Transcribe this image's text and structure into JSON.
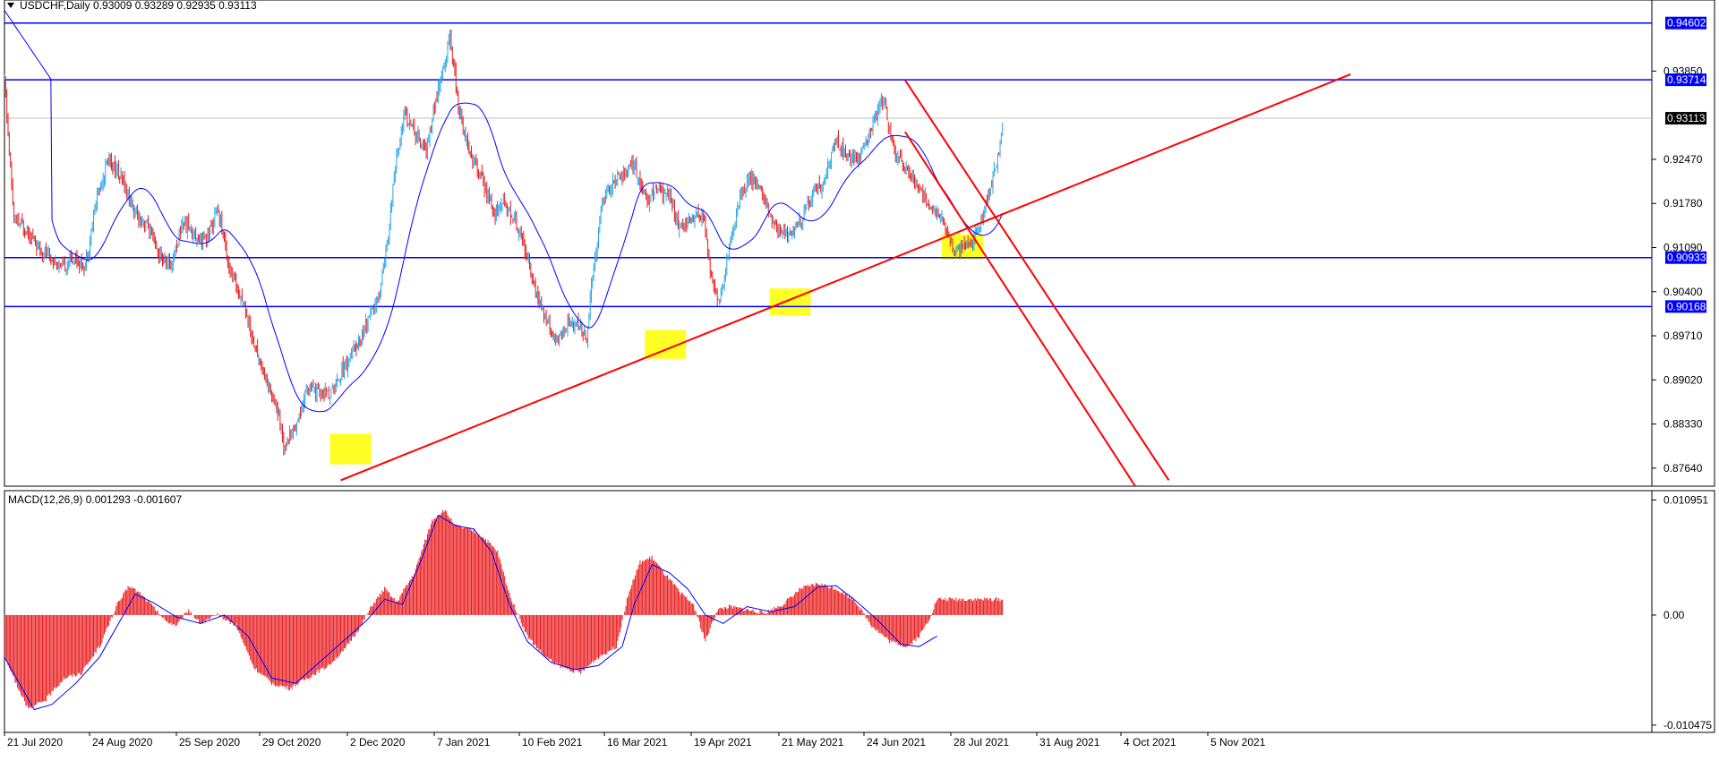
{
  "window": {
    "symbol_line": "USDCHF,Daily  0.93009 0.93289 0.92935 0.93113",
    "menu_icon": "triangle-down-icon"
  },
  "chart_data": [
    {
      "type": "candlestick",
      "title": "USDCHF,Daily",
      "ohlc_header": {
        "open": 0.93009,
        "high": 0.93289,
        "low": 0.92935,
        "close": 0.93113
      },
      "y_ticks": [
        "0.93850",
        "0.92470",
        "0.91780",
        "0.91090",
        "0.90400",
        "0.89710",
        "0.89020",
        "0.88330",
        "0.87640"
      ],
      "ylim": [
        0.874,
        0.9485
      ],
      "x_ticks": [
        "21 Jul 2020",
        "24 Aug 2020",
        "25 Sep 2020",
        "29 Oct 2020",
        "2 Dec 2020",
        "7 Jan 2021",
        "10 Feb 2021",
        "16 Mar 2021",
        "19 Apr 2021",
        "21 May 2021",
        "24 Jun 2021",
        "28 Jul 2021",
        "31 Aug 2021",
        "4 Oct 2021",
        "5 Nov 2021"
      ],
      "bullish_color": "#29a3e8",
      "bearish_color": "#e8191b",
      "price_path": [
        [
          0,
          0.937
        ],
        [
          8,
          0.915
        ],
        [
          18,
          0.914
        ],
        [
          28,
          0.911
        ],
        [
          38,
          0.9095
        ],
        [
          48,
          0.9075
        ],
        [
          58,
          0.9095
        ],
        [
          68,
          0.908
        ],
        [
          78,
          0.919
        ],
        [
          88,
          0.925
        ],
        [
          100,
          0.921
        ],
        [
          110,
          0.916
        ],
        [
          120,
          0.9145
        ],
        [
          130,
          0.9095
        ],
        [
          140,
          0.908
        ],
        [
          150,
          0.915
        ],
        [
          160,
          0.913
        ],
        [
          170,
          0.912
        ],
        [
          180,
          0.917
        ],
        [
          190,
          0.907
        ],
        [
          200,
          0.903
        ],
        [
          210,
          0.896
        ],
        [
          220,
          0.89
        ],
        [
          228,
          0.887
        ],
        [
          235,
          0.88
        ],
        [
          245,
          0.883
        ],
        [
          255,
          0.889
        ],
        [
          265,
          0.888
        ],
        [
          275,
          0.888
        ],
        [
          285,
          0.892
        ],
        [
          295,
          0.895
        ],
        [
          305,
          0.899
        ],
        [
          315,
          0.903
        ],
        [
          323,
          0.913
        ],
        [
          330,
          0.925
        ],
        [
          337,
          0.932
        ],
        [
          345,
          0.929
        ],
        [
          355,
          0.926
        ],
        [
          362,
          0.933
        ],
        [
          370,
          0.939
        ],
        [
          375,
          0.944
        ],
        [
          382,
          0.933
        ],
        [
          390,
          0.927
        ],
        [
          398,
          0.923
        ],
        [
          405,
          0.92
        ],
        [
          412,
          0.916
        ],
        [
          420,
          0.918
        ],
        [
          430,
          0.915
        ],
        [
          440,
          0.91
        ],
        [
          448,
          0.903
        ],
        [
          458,
          0.899
        ],
        [
          466,
          0.896
        ],
        [
          474,
          0.899
        ],
        [
          482,
          0.8985
        ],
        [
          490,
          0.897
        ],
        [
          496,
          0.908
        ],
        [
          503,
          0.918
        ],
        [
          512,
          0.921
        ],
        [
          520,
          0.922
        ],
        [
          530,
          0.924
        ],
        [
          540,
          0.918
        ],
        [
          550,
          0.92
        ],
        [
          560,
          0.919
        ],
        [
          568,
          0.914
        ],
        [
          578,
          0.915
        ],
        [
          588,
          0.916
        ],
        [
          595,
          0.906
        ],
        [
          602,
          0.902
        ],
        [
          610,
          0.911
        ],
        [
          618,
          0.918
        ],
        [
          628,
          0.922
        ],
        [
          638,
          0.919
        ],
        [
          648,
          0.914
        ],
        [
          660,
          0.913
        ],
        [
          670,
          0.915
        ],
        [
          680,
          0.919
        ],
        [
          690,
          0.921
        ],
        [
          700,
          0.928
        ],
        [
          710,
          0.925
        ],
        [
          720,
          0.925
        ],
        [
          730,
          0.93
        ],
        [
          740,
          0.934
        ],
        [
          750,
          0.925
        ],
        [
          760,
          0.923
        ],
        [
          770,
          0.92
        ],
        [
          780,
          0.917
        ],
        [
          790,
          0.915
        ],
        [
          800,
          0.91
        ],
        [
          810,
          0.911
        ],
        [
          820,
          0.914
        ],
        [
          828,
          0.919
        ],
        [
          835,
          0.924
        ],
        [
          840,
          0.93
        ]
      ],
      "reference_points": [
        {
          "value": 0.94602,
          "color": "#0000ff",
          "tag": "0.94602"
        },
        {
          "value": 0.93714,
          "color": "#0000ff",
          "tag": "0.93714"
        },
        {
          "value": 0.93113,
          "color": "#000000",
          "tag": "0.93113"
        },
        {
          "value": 0.90933,
          "color": "#0000ff",
          "tag": "0.90933"
        },
        {
          "value": 0.90168,
          "color": "#0000ff",
          "tag": "0.90168"
        }
      ]
    },
    {
      "type": "bar",
      "title": "MACD(12,26,9) 0.001293 -0.001607",
      "indicator": "MACD(12,26,9)",
      "main_value": 0.001293,
      "signal_value": -0.001607,
      "y_ticks": [
        "0.010951",
        "0.00",
        "-0.010475"
      ],
      "ylim": [
        -0.011,
        0.0115
      ],
      "histogram_color": "#e8191b",
      "signal_color": "#0000ff",
      "histogram_path": [
        [
          0,
          -0.004
        ],
        [
          20,
          -0.009
        ],
        [
          35,
          -0.008
        ],
        [
          50,
          -0.006
        ],
        [
          65,
          -0.0055
        ],
        [
          80,
          -0.003
        ],
        [
          95,
          0.001
        ],
        [
          105,
          0.0028
        ],
        [
          115,
          0.002
        ],
        [
          125,
          0.0008
        ],
        [
          135,
          -0.0005
        ],
        [
          145,
          -0.001
        ],
        [
          155,
          0.0005
        ],
        [
          165,
          -0.0008
        ],
        [
          180,
          0.0
        ],
        [
          195,
          -0.001
        ],
        [
          210,
          -0.005
        ],
        [
          225,
          -0.0065
        ],
        [
          240,
          -0.007
        ],
        [
          255,
          -0.006
        ],
        [
          270,
          -0.005
        ],
        [
          285,
          -0.0035
        ],
        [
          300,
          -0.001
        ],
        [
          310,
          0.001
        ],
        [
          320,
          0.0025
        ],
        [
          330,
          0.0012
        ],
        [
          345,
          0.004
        ],
        [
          360,
          0.009
        ],
        [
          370,
          0.01
        ],
        [
          380,
          0.0085
        ],
        [
          395,
          0.008
        ],
        [
          405,
          0.0072
        ],
        [
          415,
          0.006
        ],
        [
          425,
          0.002
        ],
        [
          440,
          -0.002
        ],
        [
          455,
          -0.004
        ],
        [
          470,
          -0.005
        ],
        [
          485,
          -0.0055
        ],
        [
          500,
          -0.004
        ],
        [
          515,
          -0.003
        ],
        [
          525,
          0.002
        ],
        [
          535,
          0.005
        ],
        [
          545,
          0.0055
        ],
        [
          555,
          0.004
        ],
        [
          570,
          0.002
        ],
        [
          580,
          0.001
        ],
        [
          590,
          -0.0025
        ],
        [
          600,
          0.0005
        ],
        [
          610,
          0.0008
        ],
        [
          625,
          0.0005
        ],
        [
          640,
          0.0002
        ],
        [
          655,
          0.001
        ],
        [
          670,
          0.0025
        ],
        [
          685,
          0.003
        ],
        [
          700,
          0.0025
        ],
        [
          715,
          0.0015
        ],
        [
          730,
          -0.001
        ],
        [
          745,
          -0.0025
        ],
        [
          760,
          -0.003
        ],
        [
          770,
          -0.002
        ],
        [
          778,
          -0.0005
        ],
        [
          785,
          0.0015
        ]
      ],
      "signal_path": [
        [
          0,
          -0.004
        ],
        [
          25,
          -0.009
        ],
        [
          40,
          -0.0085
        ],
        [
          60,
          -0.0065
        ],
        [
          80,
          -0.004
        ],
        [
          95,
          -0.001
        ],
        [
          110,
          0.002
        ],
        [
          125,
          0.0012
        ],
        [
          145,
          -0.0002
        ],
        [
          165,
          -0.0008
        ],
        [
          185,
          0.0
        ],
        [
          205,
          -0.002
        ],
        [
          225,
          -0.006
        ],
        [
          245,
          -0.0065
        ],
        [
          265,
          -0.0045
        ],
        [
          285,
          -0.0025
        ],
        [
          305,
          -0.0005
        ],
        [
          320,
          0.0015
        ],
        [
          335,
          0.001
        ],
        [
          350,
          0.005
        ],
        [
          365,
          0.0095
        ],
        [
          380,
          0.0085
        ],
        [
          395,
          0.0082
        ],
        [
          410,
          0.006
        ],
        [
          425,
          0.001
        ],
        [
          440,
          -0.0025
        ],
        [
          460,
          -0.0045
        ],
        [
          480,
          -0.0052
        ],
        [
          500,
          -0.0048
        ],
        [
          520,
          -0.003
        ],
        [
          530,
          0.001
        ],
        [
          545,
          0.0048
        ],
        [
          560,
          0.004
        ],
        [
          575,
          0.0025
        ],
        [
          590,
          0.0
        ],
        [
          605,
          -0.0008
        ],
        [
          625,
          0.0008
        ],
        [
          645,
          0.0003
        ],
        [
          665,
          0.0008
        ],
        [
          685,
          0.0027
        ],
        [
          700,
          0.0028
        ],
        [
          715,
          0.0015
        ],
        [
          735,
          -0.0005
        ],
        [
          755,
          -0.0028
        ],
        [
          770,
          -0.003
        ],
        [
          785,
          -0.002
        ]
      ]
    }
  ]
}
